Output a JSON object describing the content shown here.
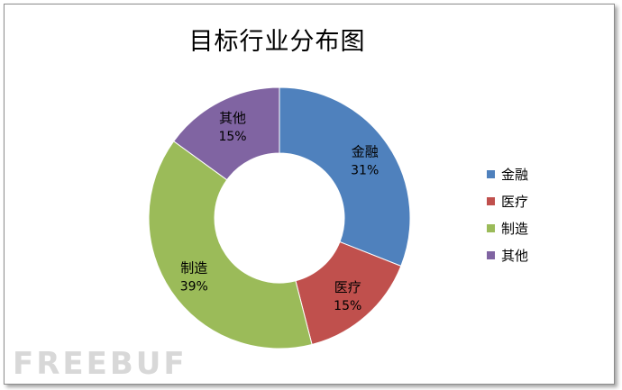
{
  "chart_data": {
    "type": "pie",
    "title": "目标行业分布图",
    "categories": [
      "金融",
      "医疗",
      "制造",
      "其他"
    ],
    "values": [
      31,
      15,
      39,
      15
    ],
    "unit": "%",
    "colors": [
      "#4f81bd",
      "#c0504d",
      "#9bbb59",
      "#8064a2"
    ],
    "donut": true,
    "legend": "right"
  },
  "watermark": "FREEBUF"
}
